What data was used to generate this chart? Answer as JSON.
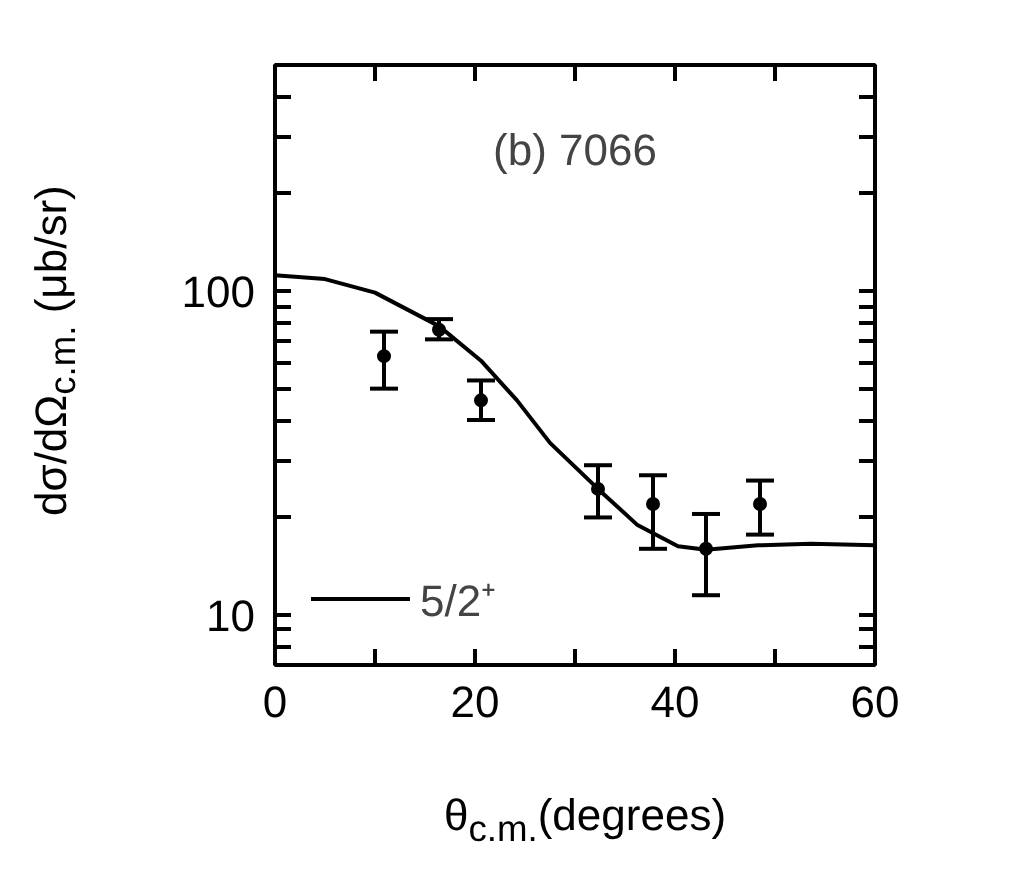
{
  "chart_data": {
    "type": "scatter",
    "xlabel": "θ$_{c.m.}$(degrees)",
    "ylabel": "dσ/dΩ$_{c.m.}$ (μb/sr)",
    "annotations": [
      "(b) 7066"
    ],
    "log": "y",
    "xlim": [
      0,
      60
    ],
    "ylim": [
      7,
      500
    ],
    "xticks": [
      0,
      {
        "value": 10,
        "label": null
      },
      20,
      {
        "value": 30,
        "label": null
      },
      40,
      {
        "value": 50,
        "label": null
      },
      60
    ],
    "yticks": [
      {
        "value": 7,
        "label": null
      },
      {
        "value": 8,
        "label": null
      },
      {
        "value": 9,
        "label": null
      },
      10,
      {
        "value": 20,
        "label": null
      },
      {
        "value": 30,
        "label": null
      },
      {
        "value": 40,
        "label": null
      },
      {
        "value": 50,
        "label": null
      },
      {
        "value": 60,
        "label": null
      },
      {
        "value": 70,
        "label": null
      },
      {
        "value": 80,
        "label": null
      },
      {
        "value": 90,
        "label": null
      },
      100,
      {
        "value": 200,
        "label": null
      },
      {
        "value": 300,
        "label": null
      },
      {
        "value": 400,
        "label": null
      },
      {
        "value": 500,
        "label": null
      }
    ],
    "grid": false,
    "legend": "bottom left",
    "series": [
      {
        "color": "#000000",
        "marker": "circle",
        "x": [
          10.9,
          16.4,
          20.6,
          32.3,
          37.8,
          43.1,
          48.5
        ],
        "values": [
          63,
          76,
          46,
          24.5,
          22,
          16,
          22
        ],
        "errors": [
          [
            50,
            75
          ],
          [
            71,
            82
          ],
          [
            40,
            53
          ],
          [
            20,
            29
          ],
          [
            16,
            27
          ],
          [
            11.5,
            20.5
          ],
          [
            17.7,
            26
          ]
        ]
      },
      {
        "type": "line",
        "name": "5/2⁺",
        "color": "#000000",
        "line_style": "solid",
        "x": [
          0,
          5,
          10,
          16.4,
          20.6,
          24.2,
          27.5,
          32.3,
          36.2,
          40.3,
          43.1,
          48.3,
          53.6,
          60
        ],
        "values": [
          112,
          109,
          99,
          78,
          61,
          46,
          34,
          24.5,
          19,
          16.3,
          15.9,
          16.4,
          16.6,
          16.4
        ]
      }
    ]
  }
}
